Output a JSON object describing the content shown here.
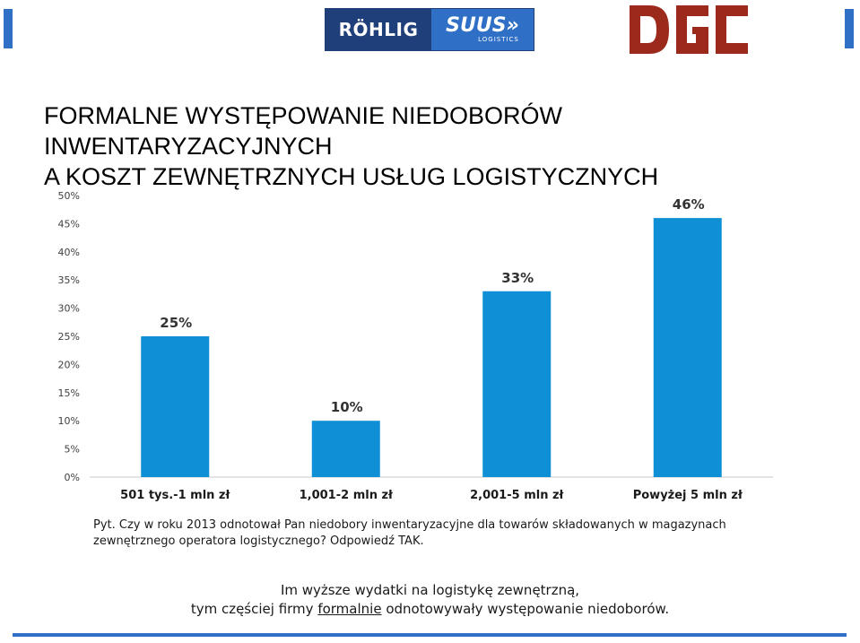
{
  "logos": {
    "rohlig_text": "RÖHLIG",
    "suus_text": "SUUS»",
    "suus_sub": "LOGISTICS",
    "dgc_text": "DGC"
  },
  "colors": {
    "bar": "#0f8fd6",
    "accent_blue": "#2f6fc6",
    "dgc_red": "#9c2a1c",
    "rohlig_navy": "#1f3f7a"
  },
  "title_lines": [
    "FORMALNE WYSTĘPOWANIE NIEDOBORÓW",
    "INWENTARYZACYJNYCH",
    "A KOSZT ZEWNĘTRZNYCH USŁUG LOGISTYCZNYCH"
  ],
  "chart_data": {
    "type": "bar",
    "categories": [
      "501 tys.-1 mln zł",
      "1,001-2 mln zł",
      "2,001-5 mln zł",
      "Powyżej 5 mln zł"
    ],
    "values": [
      25,
      10,
      33,
      46
    ],
    "value_labels": [
      "25%",
      "10%",
      "33%",
      "46%"
    ],
    "ylim": [
      0,
      50
    ],
    "yticks": [
      0,
      5,
      10,
      15,
      20,
      25,
      30,
      35,
      40,
      45,
      50
    ],
    "ytick_labels": [
      "0%",
      "5%",
      "10%",
      "15%",
      "20%",
      "25%",
      "30%",
      "35%",
      "40%",
      "45%",
      "50%"
    ],
    "grid": false,
    "legend": "none"
  },
  "question": "Pyt. Czy w roku 2013  odnotował Pan niedobory inwentaryzacyjne dla towarów składowanych w magazynach zewnętrznego operatora logistycznego? Odpowiedź TAK.",
  "conclusion": {
    "line1": "Im wyższe wydatki na logistykę zewnętrzną,",
    "line2_before": "tym częściej firmy ",
    "line2_underlined": "formalnie",
    "line2_after": " odnotowywały występowanie niedoborów."
  }
}
